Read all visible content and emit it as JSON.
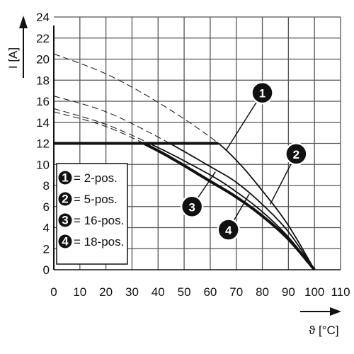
{
  "chart_data": {
    "type": "line",
    "ylabel": "I [A]",
    "xlabel": "ϑ [°C]",
    "xlim": [
      0,
      110
    ],
    "ylim": [
      0,
      24
    ],
    "x_ticks": [
      0,
      10,
      20,
      30,
      40,
      50,
      60,
      70,
      80,
      90,
      100,
      110
    ],
    "y_ticks": [
      0,
      2,
      4,
      6,
      8,
      10,
      12,
      14,
      16,
      18,
      20,
      22,
      24
    ],
    "grid": true,
    "current_limit": 12,
    "legend_placement": "bottom-left",
    "legend": [
      {
        "number": "1",
        "label": "= 2-pos."
      },
      {
        "number": "2",
        "label": "= 5-pos."
      },
      {
        "number": "3",
        "label": "= 16-pos."
      },
      {
        "number": "4",
        "label": "= 18-pos."
      }
    ],
    "series": [
      {
        "marker": "1",
        "style": "thin",
        "points": [
          [
            0,
            20.5
          ],
          [
            20,
            18.6
          ],
          [
            40,
            15.9
          ],
          [
            60,
            12.6
          ],
          [
            70,
            10.4
          ],
          [
            80,
            7.5
          ],
          [
            90,
            4.2
          ],
          [
            100,
            0
          ]
        ]
      },
      {
        "marker": "2",
        "style": "thin",
        "points": [
          [
            0,
            16.5
          ],
          [
            20,
            15.0
          ],
          [
            40,
            12.6
          ],
          [
            60,
            9.8
          ],
          [
            70,
            8.3
          ],
          [
            80,
            6.2
          ],
          [
            90,
            3.6
          ],
          [
            100,
            0
          ]
        ]
      },
      {
        "marker": "3",
        "style": "thin",
        "points": [
          [
            0,
            15.3
          ],
          [
            20,
            13.8
          ],
          [
            40,
            11.6
          ],
          [
            60,
            9.0
          ],
          [
            70,
            7.4
          ],
          [
            80,
            5.5
          ],
          [
            90,
            3.1
          ],
          [
            100,
            0
          ]
        ]
      },
      {
        "marker": "4",
        "style": "bold",
        "points": [
          [
            0,
            15.0
          ],
          [
            20,
            13.6
          ],
          [
            40,
            11.3
          ],
          [
            60,
            8.4
          ],
          [
            70,
            6.9
          ],
          [
            80,
            5.1
          ],
          [
            90,
            2.9
          ],
          [
            100,
            0
          ]
        ]
      }
    ]
  }
}
